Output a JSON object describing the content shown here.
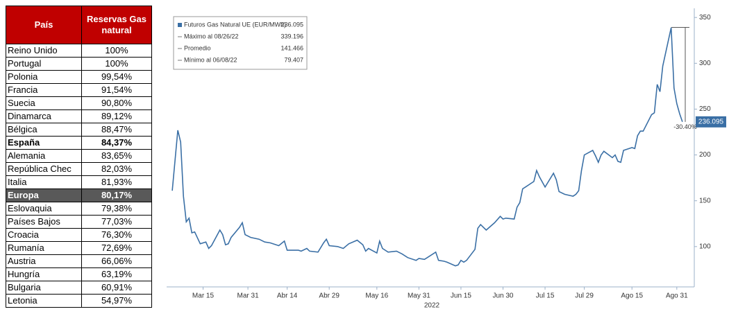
{
  "table": {
    "header": [
      "País",
      "Reservas Gas natural"
    ],
    "rows": [
      [
        "Reino Unido",
        "100%"
      ],
      [
        "Portugal",
        "100%"
      ],
      [
        "Polonia",
        "99,54%"
      ],
      [
        "Francia",
        "91,54%"
      ],
      [
        "Suecia",
        "90,80%"
      ],
      [
        "Dinamarca",
        "89,12%"
      ],
      [
        "Bélgica",
        "88,47%"
      ],
      [
        "España",
        "84,37%"
      ],
      [
        "Alemania",
        "83,65%"
      ],
      [
        "República Chec",
        "82,03%"
      ],
      [
        "Italia",
        "81,93%"
      ],
      [
        "Europa",
        "80,17%"
      ],
      [
        "Eslovaquia",
        "79,38%"
      ],
      [
        "Países Bajos",
        "77,03%"
      ],
      [
        "Croacia",
        "76,30%"
      ],
      [
        "Rumanía",
        "72,69%"
      ],
      [
        "Austria",
        "66,06%"
      ],
      [
        "Hungría",
        "63,19%"
      ],
      [
        "Bulgaria",
        "60,91%"
      ],
      [
        "Letonia",
        "54,97%"
      ]
    ]
  },
  "chart_data": {
    "type": "line",
    "x_label": "2022",
    "x": [
      "2022-03-04",
      "2022-03-06",
      "2022-03-07",
      "2022-03-08",
      "2022-03-09",
      "2022-03-10",
      "2022-03-11",
      "2022-03-12",
      "2022-03-14",
      "2022-03-16",
      "2022-03-17",
      "2022-03-18",
      "2022-03-21",
      "2022-03-22",
      "2022-03-23",
      "2022-03-24",
      "2022-03-25",
      "2022-03-28",
      "2022-03-29",
      "2022-03-30",
      "2022-04-01",
      "2022-04-04",
      "2022-04-06",
      "2022-04-08",
      "2022-04-11",
      "2022-04-13",
      "2022-04-14",
      "2022-04-18",
      "2022-04-19",
      "2022-04-21",
      "2022-04-22",
      "2022-04-25",
      "2022-04-27",
      "2022-04-28",
      "2022-04-29",
      "2022-05-02",
      "2022-05-04",
      "2022-05-06",
      "2022-05-09",
      "2022-05-11",
      "2022-05-12",
      "2022-05-13",
      "2022-05-16",
      "2022-05-17",
      "2022-05-18",
      "2022-05-20",
      "2022-05-23",
      "2022-05-25",
      "2022-05-27",
      "2022-05-30",
      "2022-05-31",
      "2022-06-02",
      "2022-06-03",
      "2022-06-06",
      "2022-06-07",
      "2022-06-09",
      "2022-06-10",
      "2022-06-13",
      "2022-06-14",
      "2022-06-15",
      "2022-06-16",
      "2022-06-17",
      "2022-06-20",
      "2022-06-21",
      "2022-06-22",
      "2022-06-24",
      "2022-06-27",
      "2022-06-29",
      "2022-06-30",
      "2022-07-01",
      "2022-07-04",
      "2022-07-05",
      "2022-07-06",
      "2022-07-07",
      "2022-07-08",
      "2022-07-11",
      "2022-07-12",
      "2022-07-13",
      "2022-07-15",
      "2022-07-18",
      "2022-07-19",
      "2022-07-20",
      "2022-07-22",
      "2022-07-25",
      "2022-07-26",
      "2022-07-27",
      "2022-07-28",
      "2022-07-29",
      "2022-08-01",
      "2022-08-02",
      "2022-08-03",
      "2022-08-04",
      "2022-08-05",
      "2022-08-08",
      "2022-08-09",
      "2022-08-10",
      "2022-08-11",
      "2022-08-12",
      "2022-08-15",
      "2022-08-16",
      "2022-08-17",
      "2022-08-18",
      "2022-08-19",
      "2022-08-22",
      "2022-08-23",
      "2022-08-24",
      "2022-08-25",
      "2022-08-26",
      "2022-08-29",
      "2022-08-30",
      "2022-08-31",
      "2022-09-01",
      "2022-09-02"
    ],
    "series": [
      {
        "name": "Futuros Gas Natural UE (EUR/MWh)",
        "color": "#3a6fa5",
        "values": [
          161,
          227,
          214,
          155,
          127,
          131,
          115,
          116,
          103,
          105,
          98,
          101,
          118,
          113,
          102,
          103,
          110,
          121,
          126,
          113,
          110,
          108,
          105,
          104,
          101,
          106,
          96,
          96,
          95,
          98,
          95,
          94,
          104,
          108,
          101,
          100,
          98,
          103,
          107,
          102,
          95,
          98,
          93,
          106,
          98,
          94,
          95,
          92,
          88,
          85,
          87,
          86,
          88,
          94,
          85,
          84,
          83,
          79,
          80,
          85,
          83,
          85,
          97,
          120,
          124,
          118,
          126,
          133,
          130,
          131,
          130,
          143,
          148,
          163,
          165,
          171,
          183,
          176,
          165,
          180,
          173,
          160,
          157,
          155,
          157,
          161,
          183,
          200,
          205,
          199,
          192,
          200,
          204,
          197,
          200,
          193,
          192,
          205,
          208,
          207,
          221,
          226,
          226,
          244,
          246,
          277,
          269,
          297,
          339,
          273,
          256,
          245,
          236.095
        ]
      }
    ],
    "stats": [
      {
        "label": "Máximo al 08/26/22",
        "value": 339.196
      },
      {
        "label": "Promedio",
        "value": 141.466
      },
      {
        "label": "Mínimo al 06/08/22",
        "value": 79.407
      }
    ],
    "annotation": "-30.40%",
    "xlim": [
      "2022-03-02",
      "2022-09-05"
    ],
    "xticks": [
      {
        "value": "2022-03-15",
        "label": "Mar 15"
      },
      {
        "value": "2022-03-31",
        "label": "Mar 31"
      },
      {
        "value": "2022-04-14",
        "label": "Abr 14"
      },
      {
        "value": "2022-04-29",
        "label": "Abr 29"
      },
      {
        "value": "2022-05-16",
        "label": "May 16"
      },
      {
        "value": "2022-05-31",
        "label": "May 31"
      },
      {
        "value": "2022-06-15",
        "label": "Jun 15"
      },
      {
        "value": "2022-06-30",
        "label": "Jun 30"
      },
      {
        "value": "2022-07-15",
        "label": "Jul 15"
      },
      {
        "value": "2022-07-29",
        "label": "Jul 29"
      },
      {
        "value": "2022-08-15",
        "label": "Ago 15"
      },
      {
        "value": "2022-08-31",
        "label": "Ago 31"
      }
    ],
    "ylim": [
      56,
      360
    ],
    "yticks": [
      100,
      150,
      200,
      250,
      300,
      350
    ]
  }
}
